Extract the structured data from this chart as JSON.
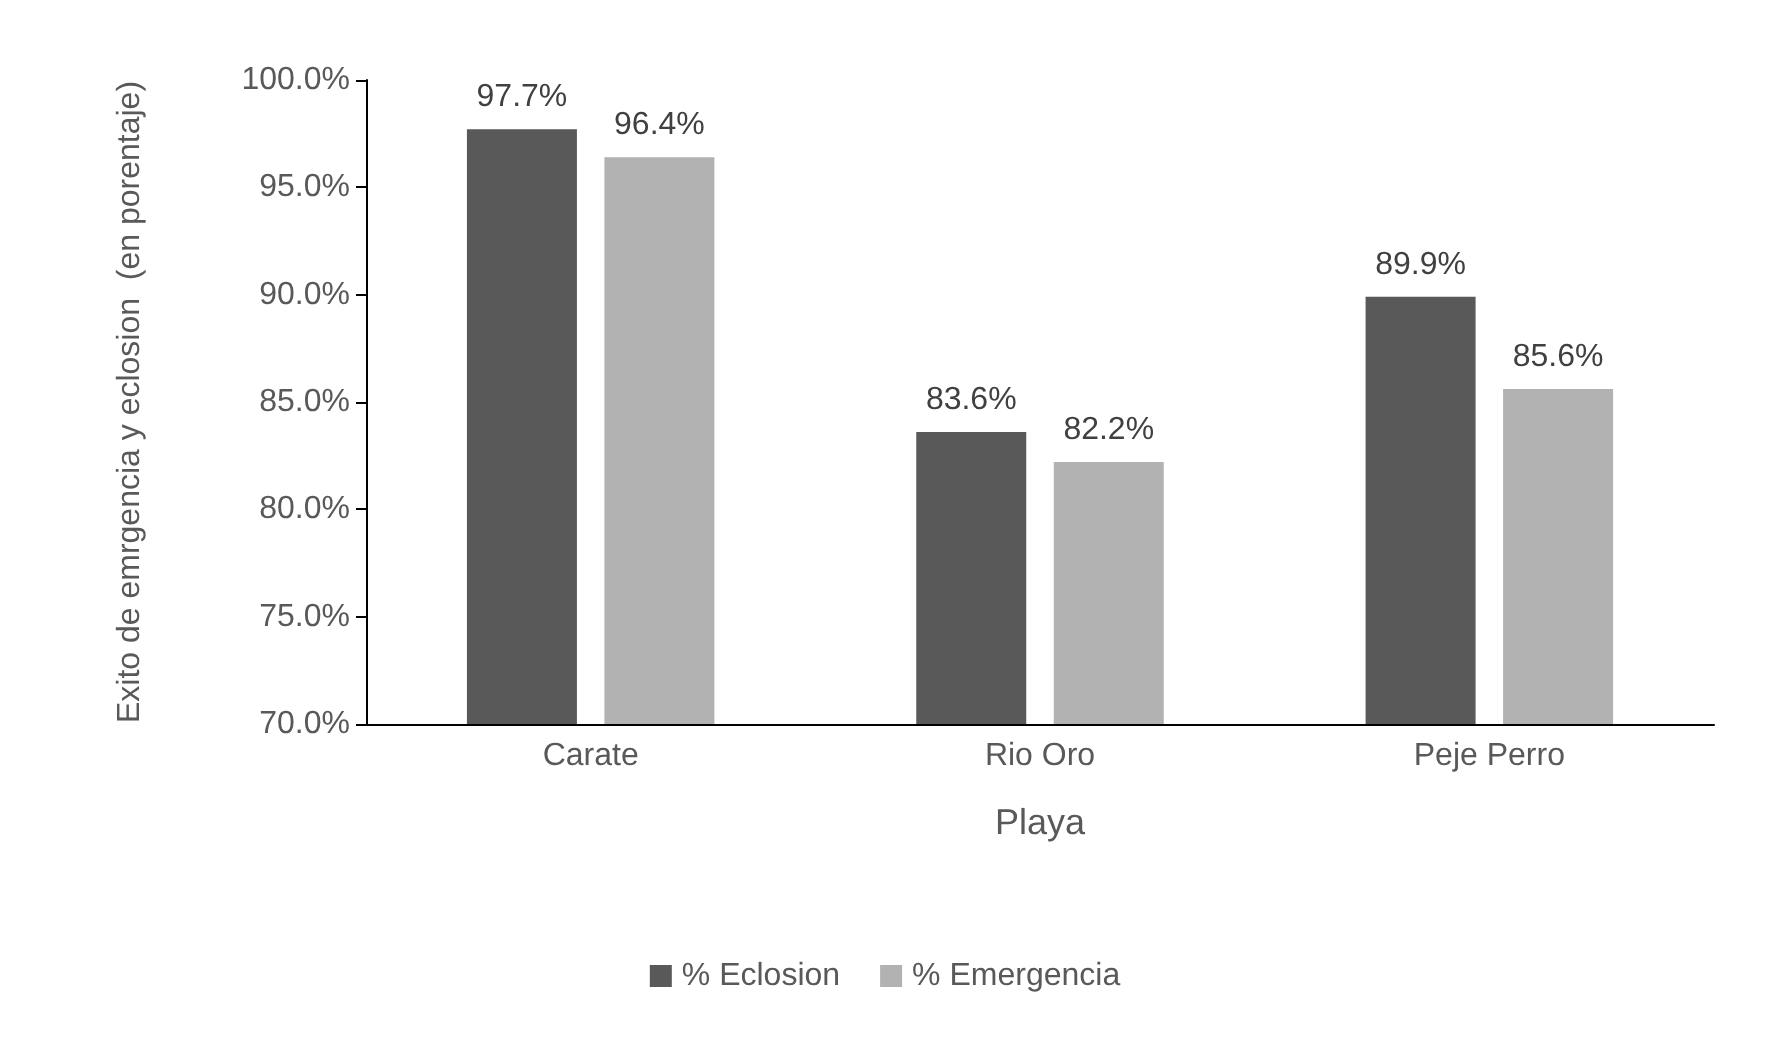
{
  "chart_data": {
    "type": "bar",
    "xlabel": "Playa",
    "ylabel": "Exito de emrgencia y eclosion  (en porentaje)",
    "categories": [
      "Carate",
      "Rio Oro",
      "Peje Perro"
    ],
    "series": [
      {
        "name": "% Eclosion",
        "color": "#595959",
        "values": [
          97.7,
          83.6,
          89.9
        ],
        "value_labels": [
          "97.7%",
          "83.6%",
          "89.9%"
        ]
      },
      {
        "name": "% Emergencia",
        "color": "#b2b2b2",
        "values": [
          96.4,
          82.2,
          85.6
        ],
        "value_labels": [
          "96.4%",
          "82.2%",
          "85.6%"
        ]
      }
    ],
    "ylim": [
      70,
      100
    ],
    "yticks": [
      {
        "value": 70,
        "label": "70.0%"
      },
      {
        "value": 75,
        "label": "75.0%"
      },
      {
        "value": 80,
        "label": "80.0%"
      },
      {
        "value": 85,
        "label": "85.0%"
      },
      {
        "value": 90,
        "label": "90.0%"
      },
      {
        "value": 95,
        "label": "95.0%"
      },
      {
        "value": 100,
        "label": "100.0%"
      }
    ],
    "grid": false,
    "legend": "bottom"
  }
}
